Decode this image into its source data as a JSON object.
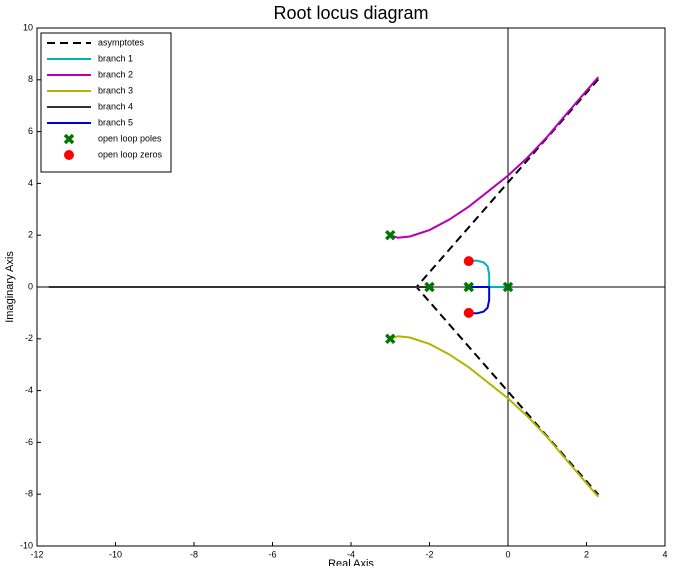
{
  "chart_data": {
    "type": "line",
    "title": "Root locus diagram",
    "xlabel": "Real Axis",
    "ylabel": "Imaginary Axis",
    "xlim": [
      -12,
      4
    ],
    "xticks": [
      -12,
      -10,
      -8,
      -6,
      -4,
      -2,
      0,
      2,
      4
    ],
    "ylim": [
      -10,
      10
    ],
    "yticks": [
      -10,
      -8,
      -6,
      -4,
      -2,
      0,
      2,
      4,
      6,
      8,
      10
    ],
    "legend": "upper left",
    "series": [
      {
        "name": "asymptotes",
        "color": "#000000",
        "style": "dashed",
        "x": [
          2.3,
          -2.33,
          2.3
        ],
        "y": [
          8.02,
          0,
          -8.02
        ]
      },
      {
        "name": "branch  1",
        "color": "#00b4b4",
        "style": "solid",
        "x": [
          0,
          -0.48,
          -0.48,
          -0.52,
          -0.62,
          -0.8,
          -1
        ],
        "y": [
          0,
          0,
          0.5,
          0.8,
          0.95,
          1.02,
          1
        ]
      },
      {
        "name": "branch  2",
        "color": "#b400b4",
        "style": "solid",
        "x": [
          -3,
          -2.8,
          -2.5,
          -2,
          -1.5,
          -1,
          -0.5,
          0,
          0.5,
          1,
          1.5,
          2.3
        ],
        "y": [
          2,
          1.9,
          1.95,
          2.2,
          2.6,
          3.1,
          3.7,
          4.3,
          5.0,
          5.8,
          6.7,
          8.1
        ]
      },
      {
        "name": "branch  3",
        "color": "#b4b400",
        "style": "solid",
        "x": [
          -3,
          -2.8,
          -2.5,
          -2,
          -1.5,
          -1,
          -0.5,
          0,
          0.5,
          1,
          1.5,
          2.3
        ],
        "y": [
          -2,
          -1.9,
          -1.95,
          -2.2,
          -2.6,
          -3.1,
          -3.7,
          -4.3,
          -5.0,
          -5.8,
          -6.7,
          -8.1
        ]
      },
      {
        "name": "branch  4",
        "color": "#323232",
        "style": "solid",
        "x": [
          -2,
          -11.7
        ],
        "y": [
          0,
          0
        ]
      },
      {
        "name": "branch  5",
        "color": "#0000dc",
        "style": "solid",
        "x": [
          -1,
          -0.48,
          -0.48,
          -0.52,
          -0.62,
          -0.8,
          -1
        ],
        "y": [
          0,
          0,
          -0.5,
          -0.8,
          -0.95,
          -1.02,
          -1
        ]
      },
      {
        "name": "open loop poles",
        "color": "#007800",
        "style": "x",
        "x": [
          -3,
          -3,
          -2,
          -1,
          0
        ],
        "y": [
          2,
          -2,
          0,
          0,
          0
        ]
      },
      {
        "name": "open loop zeros",
        "color": "#ff0000",
        "style": "o",
        "x": [
          -1,
          -1
        ],
        "y": [
          1,
          -1
        ]
      }
    ]
  }
}
